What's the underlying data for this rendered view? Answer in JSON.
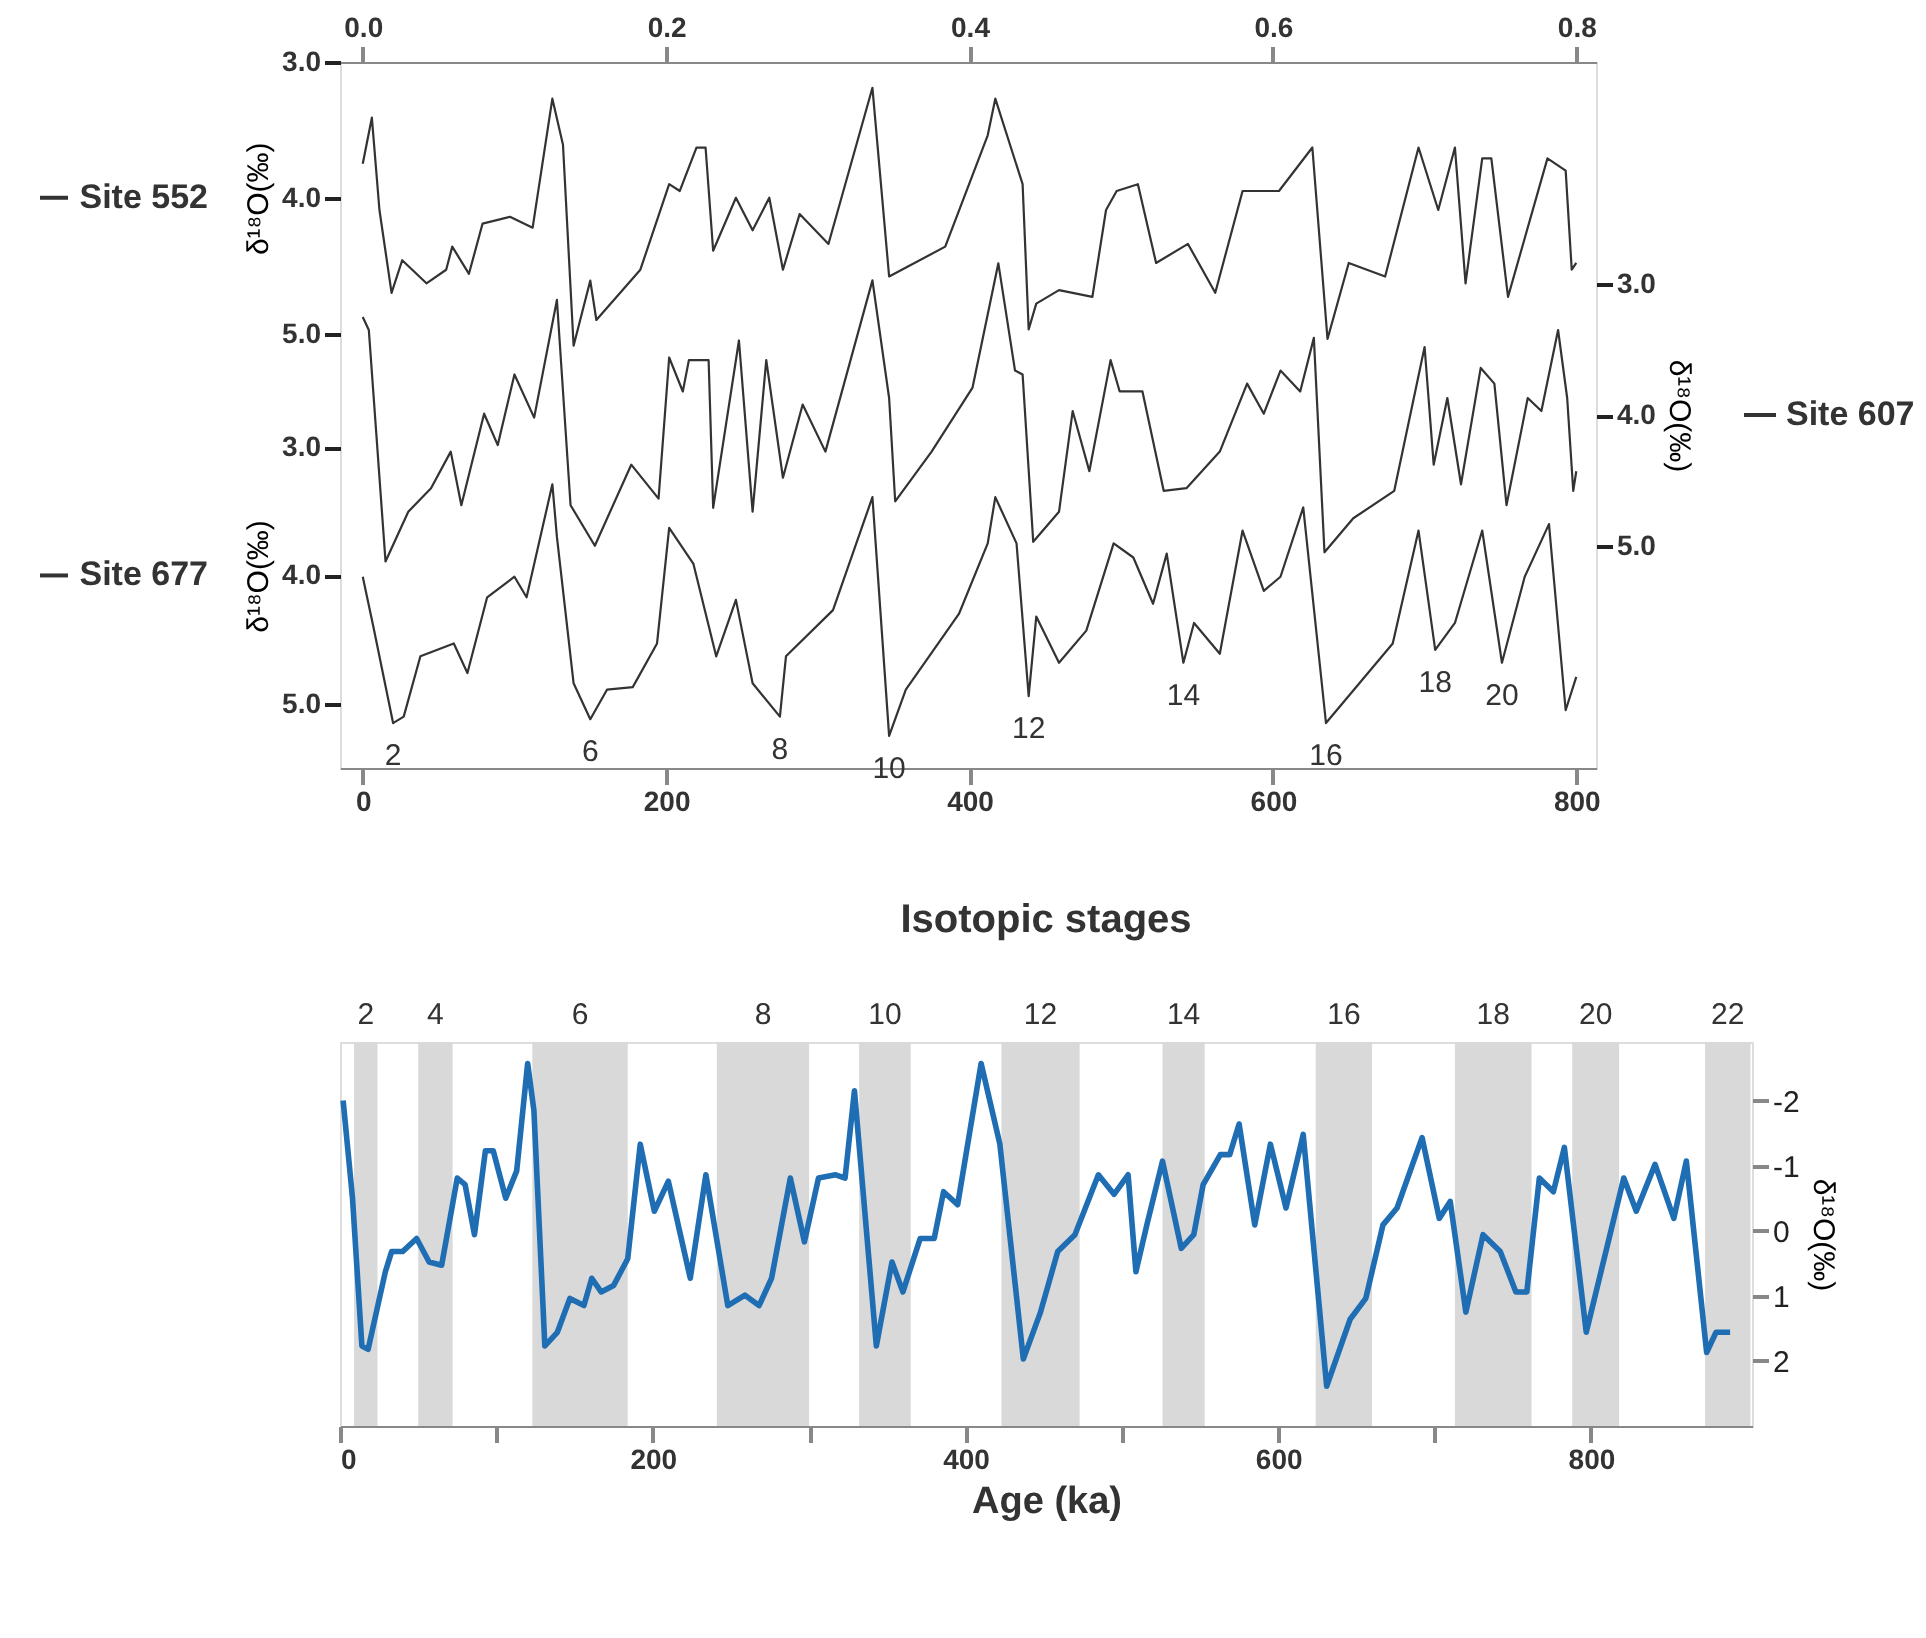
{
  "chart_data": [
    {
      "type": "line",
      "xlim": [
        -15,
        813
      ],
      "xticks": [
        0,
        200,
        400,
        600,
        800
      ],
      "x2lim": [
        -0.015,
        0.813
      ],
      "x2ticks": [
        {
          "value": 0,
          "label": "0.0"
        },
        {
          "value": 0.2,
          "label": "0.2"
        },
        {
          "value": 0.4,
          "label": "0.4"
        },
        {
          "value": 0.6,
          "label": "0.6"
        },
        {
          "value": 0.8,
          "label": "0.8"
        }
      ],
      "ylim": [
        5.5,
        0.0
      ],
      "yticks": [
        {
          "value": 3,
          "label": "3.0"
        },
        {
          "value": 4,
          "label": "4.0"
        },
        {
          "value": 5,
          "label": "5.0"
        }
      ],
      "ylabel": "δ¹⁸O(‰)",
      "y2lim": [
        6.7,
        1.3
      ],
      "y2ticks": [
        {
          "value": 3,
          "label": "3.0"
        },
        {
          "value": 4,
          "label": "4.0"
        },
        {
          "value": 5,
          "label": "5.0"
        }
      ],
      "y2label": "δ¹⁸O(‰)",
      "y3lim": [
        8.2,
        3.0
      ],
      "y3ticks": [
        {
          "value": 3,
          "label": "3.0"
        },
        {
          "value": 4,
          "label": "4.0"
        },
        {
          "value": 5,
          "label": "5.0"
        }
      ],
      "y3label": "δ¹⁸O(‰)",
      "grid": false,
      "legend": "left",
      "series": [
        {
          "name": "Site 552",
          "color": "#333333",
          "axis": "y3",
          "x": [
            0,
            6,
            11,
            19,
            26,
            42,
            55,
            59,
            70,
            79,
            97,
            112,
            125,
            132,
            139,
            150,
            154,
            183,
            202,
            209,
            220,
            226,
            231,
            246,
            257,
            268,
            277,
            288,
            307,
            336,
            347,
            384,
            412,
            417,
            435,
            439,
            444,
            459,
            481,
            490,
            497,
            511,
            523,
            544,
            562,
            580,
            604,
            626,
            636,
            650,
            674,
            696,
            709,
            720,
            727,
            738,
            744,
            755,
            781,
            793,
            797,
            800
          ],
          "values": [
            3.75,
            3.41,
            4.09,
            4.7,
            4.46,
            4.63,
            4.53,
            4.36,
            4.56,
            4.19,
            4.14,
            4.22,
            3.27,
            3.61,
            5.09,
            4.61,
            4.9,
            4.53,
            3.9,
            3.95,
            3.63,
            3.63,
            4.39,
            4.0,
            4.24,
            4.0,
            4.53,
            4.12,
            4.34,
            3.19,
            4.58,
            4.36,
            3.54,
            3.27,
            3.9,
            4.97,
            4.78,
            4.68,
            4.73,
            4.09,
            3.95,
            3.9,
            4.48,
            4.34,
            4.7,
            3.95,
            3.95,
            3.63,
            5.04,
            4.48,
            4.58,
            3.63,
            4.09,
            3.63,
            4.63,
            3.71,
            3.71,
            4.73,
            3.71,
            3.8,
            4.53,
            4.48
          ]
        },
        {
          "name": "Site 607",
          "color": "#333333",
          "axis": "y2",
          "x": [
            0,
            4,
            15,
            30,
            45,
            58,
            65,
            80,
            89,
            100,
            113,
            128,
            137,
            153,
            177,
            195,
            202,
            211,
            215,
            228,
            231,
            248,
            257,
            266,
            277,
            290,
            305,
            336,
            347,
            351,
            375,
            402,
            419,
            430,
            435,
            442,
            459,
            468,
            479,
            493,
            499,
            514,
            528,
            543,
            565,
            583,
            594,
            605,
            618,
            627,
            634,
            653,
            680,
            700,
            706,
            715,
            724,
            737,
            746,
            754,
            768,
            777,
            788,
            794,
            798,
            800
          ],
          "values": [
            3.25,
            3.35,
            5.12,
            4.74,
            4.56,
            4.28,
            4.69,
            3.99,
            4.23,
            3.69,
            4.02,
            3.12,
            4.69,
            5.0,
            4.38,
            4.64,
            3.56,
            3.82,
            3.58,
            3.58,
            4.71,
            3.43,
            4.74,
            3.58,
            4.48,
            3.92,
            4.28,
            2.97,
            3.87,
            4.66,
            4.28,
            3.79,
            2.84,
            3.66,
            3.69,
            4.97,
            4.74,
            3.97,
            4.43,
            3.58,
            3.82,
            3.82,
            4.58,
            4.56,
            4.28,
            3.76,
            3.99,
            3.66,
            3.82,
            3.41,
            5.05,
            4.79,
            4.58,
            3.48,
            4.38,
            3.87,
            4.53,
            3.64,
            3.76,
            4.69,
            3.87,
            3.97,
            3.35,
            3.87,
            4.58,
            4.43
          ]
        },
        {
          "name": "Site 677",
          "color": "#333333",
          "axis": "y",
          "x": [
            0,
            7,
            20,
            27,
            38,
            60,
            69,
            82,
            100,
            108,
            125,
            128,
            139,
            150,
            161,
            178,
            194,
            202,
            218,
            233,
            246,
            257,
            275,
            279,
            310,
            336,
            347,
            358,
            393,
            412,
            417,
            431,
            439,
            444,
            459,
            477,
            495,
            508,
            521,
            530,
            541,
            548,
            565,
            580,
            594,
            605,
            620,
            635,
            657,
            679,
            696,
            707,
            720,
            738,
            751,
            766,
            782,
            793,
            800
          ],
          "values": [
            4.01,
            4.4,
            5.15,
            5.1,
            4.63,
            4.53,
            4.76,
            4.17,
            4.01,
            4.17,
            3.29,
            3.7,
            4.84,
            5.12,
            4.89,
            4.87,
            4.53,
            3.63,
            3.91,
            4.63,
            4.19,
            4.84,
            5.1,
            4.63,
            4.27,
            3.39,
            5.25,
            4.89,
            4.3,
            3.75,
            3.39,
            3.75,
            4.94,
            4.32,
            4.68,
            4.43,
            3.75,
            3.86,
            4.22,
            3.83,
            4.68,
            4.37,
            4.61,
            3.65,
            4.12,
            4.01,
            3.47,
            5.15,
            4.84,
            4.53,
            3.65,
            4.58,
            4.37,
            3.65,
            4.68,
            4.01,
            3.6,
            5.05,
            4.79
          ]
        }
      ],
      "annotations": [
        {
          "text": "2",
          "x": 20,
          "y": 5.15
        },
        {
          "text": "6",
          "x": 150,
          "y": 5.12
        },
        {
          "text": "8",
          "x": 275,
          "y": 5.1
        },
        {
          "text": "10",
          "x": 347,
          "y": 5.25
        },
        {
          "text": "12",
          "x": 439,
          "y": 4.94
        },
        {
          "text": "14",
          "x": 541,
          "y": 4.68
        },
        {
          "text": "16",
          "x": 635,
          "y": 5.15
        },
        {
          "text": "18",
          "x": 707,
          "y": 4.58
        },
        {
          "text": "20",
          "x": 751,
          "y": 4.68
        }
      ]
    },
    {
      "type": "line",
      "title": "Isotopic stages",
      "xlabel": "Age (ka)",
      "ylabel": "δ¹⁸O(‰)",
      "xlim": [
        0,
        903
      ],
      "xticks": [
        0,
        {
          "value": 100,
          "label": null
        },
        200,
        {
          "value": 300,
          "label": null
        },
        400,
        {
          "value": 500,
          "label": null
        },
        600,
        {
          "value": 700,
          "label": null
        },
        800
      ],
      "ylim": [
        3.0,
        -2.9
      ],
      "yticks": [
        -2,
        -1,
        0,
        1,
        2
      ],
      "grid": false,
      "legend": false,
      "bands": [
        {
          "axis": "x",
          "from": 9,
          "to": 24,
          "label": "2",
          "color": "#d9d9d9"
        },
        {
          "axis": "x",
          "from": 50,
          "to": 72,
          "label": "4",
          "color": "#d9d9d9"
        },
        {
          "axis": "x",
          "from": 123,
          "to": 184,
          "label": "6",
          "color": "#d9d9d9"
        },
        {
          "axis": "x",
          "from": 241,
          "to": 300,
          "label": "8",
          "color": "#d9d9d9"
        },
        {
          "axis": "x",
          "from": 332,
          "to": 365,
          "label": "10",
          "color": "#d9d9d9"
        },
        {
          "axis": "x",
          "from": 423,
          "to": 473,
          "label": "12",
          "color": "#d9d9d9"
        },
        {
          "axis": "x",
          "from": 526,
          "to": 553,
          "label": "14",
          "color": "#d9d9d9"
        },
        {
          "axis": "x",
          "from": 624,
          "to": 660,
          "label": "16",
          "color": "#d9d9d9"
        },
        {
          "axis": "x",
          "from": 713,
          "to": 762,
          "label": "18",
          "color": "#d9d9d9"
        },
        {
          "axis": "x",
          "from": 788,
          "to": 818,
          "label": "20",
          "color": "#d9d9d9"
        },
        {
          "axis": "x",
          "from": 873,
          "to": 902,
          "label": "22",
          "color": "#d9d9d9"
        }
      ],
      "series": [
        {
          "color": "#1f6db3",
          "x": [
            2,
            8,
            14,
            18,
            29,
            33,
            40,
            49,
            57,
            65,
            75,
            80,
            86,
            93,
            98,
            106,
            113,
            120,
            124,
            131,
            139,
            147,
            156,
            161,
            167,
            175,
            184,
            192,
            201,
            210,
            224,
            234,
            248,
            259,
            268,
            276,
            288,
            297,
            306,
            317,
            323,
            329,
            343,
            353,
            360,
            371,
            380,
            386,
            395,
            410,
            422,
            437,
            448,
            459,
            470,
            485,
            495,
            504,
            509,
            516,
            526,
            538,
            546,
            552,
            563,
            569,
            575,
            585,
            595,
            605,
            616,
            631,
            646,
            656,
            667,
            676,
            692,
            703,
            710,
            720,
            731,
            742,
            752,
            759,
            767,
            776,
            783,
            797,
            821,
            829,
            841,
            853,
            861,
            874,
            880,
            889
          ],
          "values": [
            -2.0,
            -0.5,
            1.77,
            1.82,
            0.63,
            0.32,
            0.32,
            0.12,
            0.48,
            0.53,
            -0.81,
            -0.71,
            0.06,
            -1.23,
            -1.23,
            -0.5,
            -0.92,
            -2.57,
            -1.85,
            1.77,
            1.56,
            1.04,
            1.15,
            0.73,
            0.94,
            0.84,
            0.43,
            -1.33,
            -0.3,
            -0.76,
            0.73,
            -0.86,
            1.15,
            0.99,
            1.15,
            0.73,
            -0.81,
            0.17,
            -0.81,
            -0.86,
            -0.81,
            -2.15,
            1.77,
            0.48,
            0.94,
            0.12,
            0.12,
            -0.6,
            -0.4,
            -2.57,
            -1.33,
            1.97,
            1.25,
            0.32,
            0.06,
            -0.86,
            -0.56,
            -0.86,
            0.63,
            -0.09,
            -1.07,
            0.27,
            0.06,
            -0.71,
            -1.17,
            -1.17,
            -1.64,
            -0.09,
            -1.33,
            -0.35,
            -1.48,
            2.39,
            1.36,
            1.04,
            -0.09,
            -0.35,
            -1.43,
            -0.19,
            -0.45,
            1.25,
            0.06,
            0.32,
            0.94,
            0.94,
            -0.81,
            -0.6,
            -1.28,
            1.56,
            -0.81,
            -0.3,
            -1.02,
            -0.19,
            -1.07,
            1.87,
            1.56,
            1.56
          ]
        }
      ]
    }
  ]
}
